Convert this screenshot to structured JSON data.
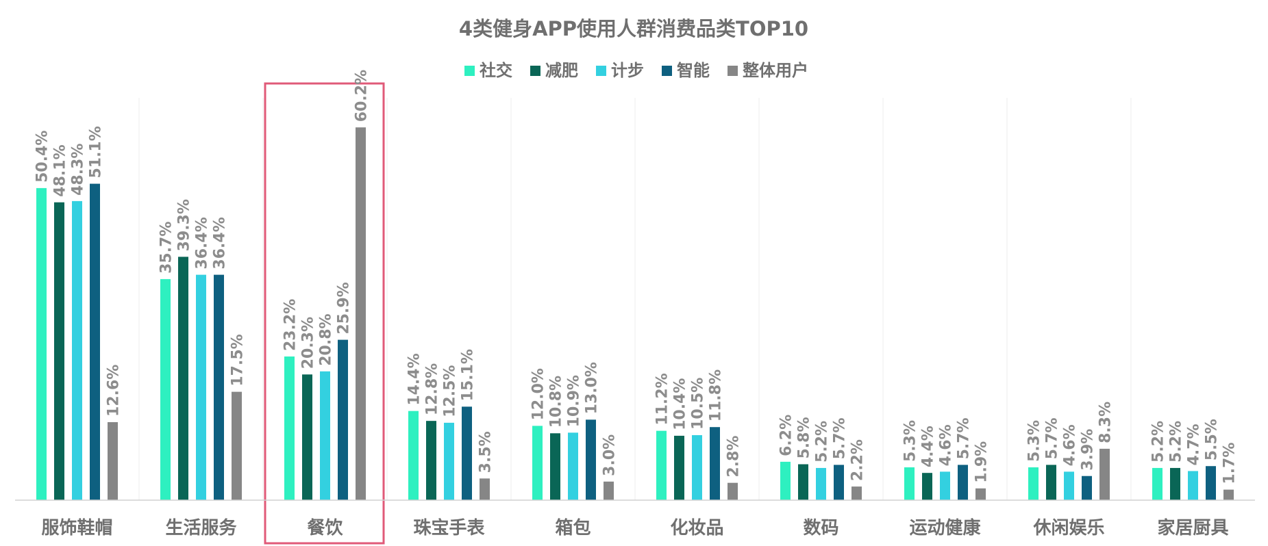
{
  "chart_data": {
    "type": "bar",
    "title": "4类健身APP使用人群消费品类TOP10",
    "xlabel": "",
    "ylabel": "",
    "ylim": [
      0,
      70
    ],
    "grid": false,
    "legend_position": "top",
    "categories": [
      "服饰鞋帽",
      "生活服务",
      "餐饮",
      "珠宝手表",
      "箱包",
      "化妆品",
      "数码",
      "运动健康",
      "休闲娱乐",
      "家居厨具"
    ],
    "highlighted_category": "餐饮",
    "series": [
      {
        "name": "社交",
        "color": "#2ef0c0",
        "values": [
          50.4,
          35.7,
          23.2,
          14.4,
          12.0,
          11.2,
          6.2,
          5.3,
          5.3,
          5.2
        ],
        "labels": [
          "50.4%",
          "35.7%",
          "23.2%",
          "14.4%",
          "12.0%",
          "11.2%",
          "6.2%",
          "5.3%",
          "5.3%",
          "5.2%"
        ]
      },
      {
        "name": "减肥",
        "color": "#0a6656",
        "values": [
          48.1,
          39.3,
          20.3,
          12.8,
          10.8,
          10.4,
          5.8,
          4.4,
          5.7,
          5.2
        ],
        "labels": [
          "48.1%",
          "39.3%",
          "20.3%",
          "12.8%",
          "10.8%",
          "10.4%",
          "5.8%",
          "4.4%",
          "5.7%",
          "5.2%"
        ]
      },
      {
        "name": "计步",
        "color": "#33d0e0",
        "values": [
          48.3,
          36.4,
          20.8,
          12.5,
          10.9,
          10.5,
          5.2,
          4.6,
          4.6,
          4.7
        ],
        "labels": [
          "48.3%",
          "36.4%",
          "20.8%",
          "12.5%",
          "10.9%",
          "10.5%",
          "5.2%",
          "4.6%",
          "4.6%",
          "4.7%"
        ]
      },
      {
        "name": "智能",
        "color": "#0e6080",
        "values": [
          51.1,
          36.4,
          25.9,
          15.1,
          13.0,
          11.8,
          5.7,
          5.7,
          3.9,
          5.5
        ],
        "labels": [
          "51.1%",
          "36.4%",
          "25.9%",
          "15.1%",
          "13.0%",
          "11.8%",
          "5.7%",
          "5.7%",
          "3.9%",
          "5.5%"
        ]
      },
      {
        "name": "整体用户",
        "color": "#868686",
        "values": [
          12.6,
          17.5,
          60.2,
          3.5,
          3.0,
          2.8,
          2.2,
          1.9,
          8.3,
          1.7
        ],
        "labels": [
          "12.6%",
          "17.5%",
          "60.2%",
          "3.5%",
          "3.0%",
          "2.8%",
          "2.2%",
          "1.9%",
          "8.3%",
          "1.7%"
        ]
      }
    ]
  },
  "colors": {
    "highlight_border": "#e05a78",
    "axis_line": "#d0d0d0",
    "separator": "#ececec",
    "title_text": "#6f6f6f",
    "label_text": "#8c8c8c"
  }
}
